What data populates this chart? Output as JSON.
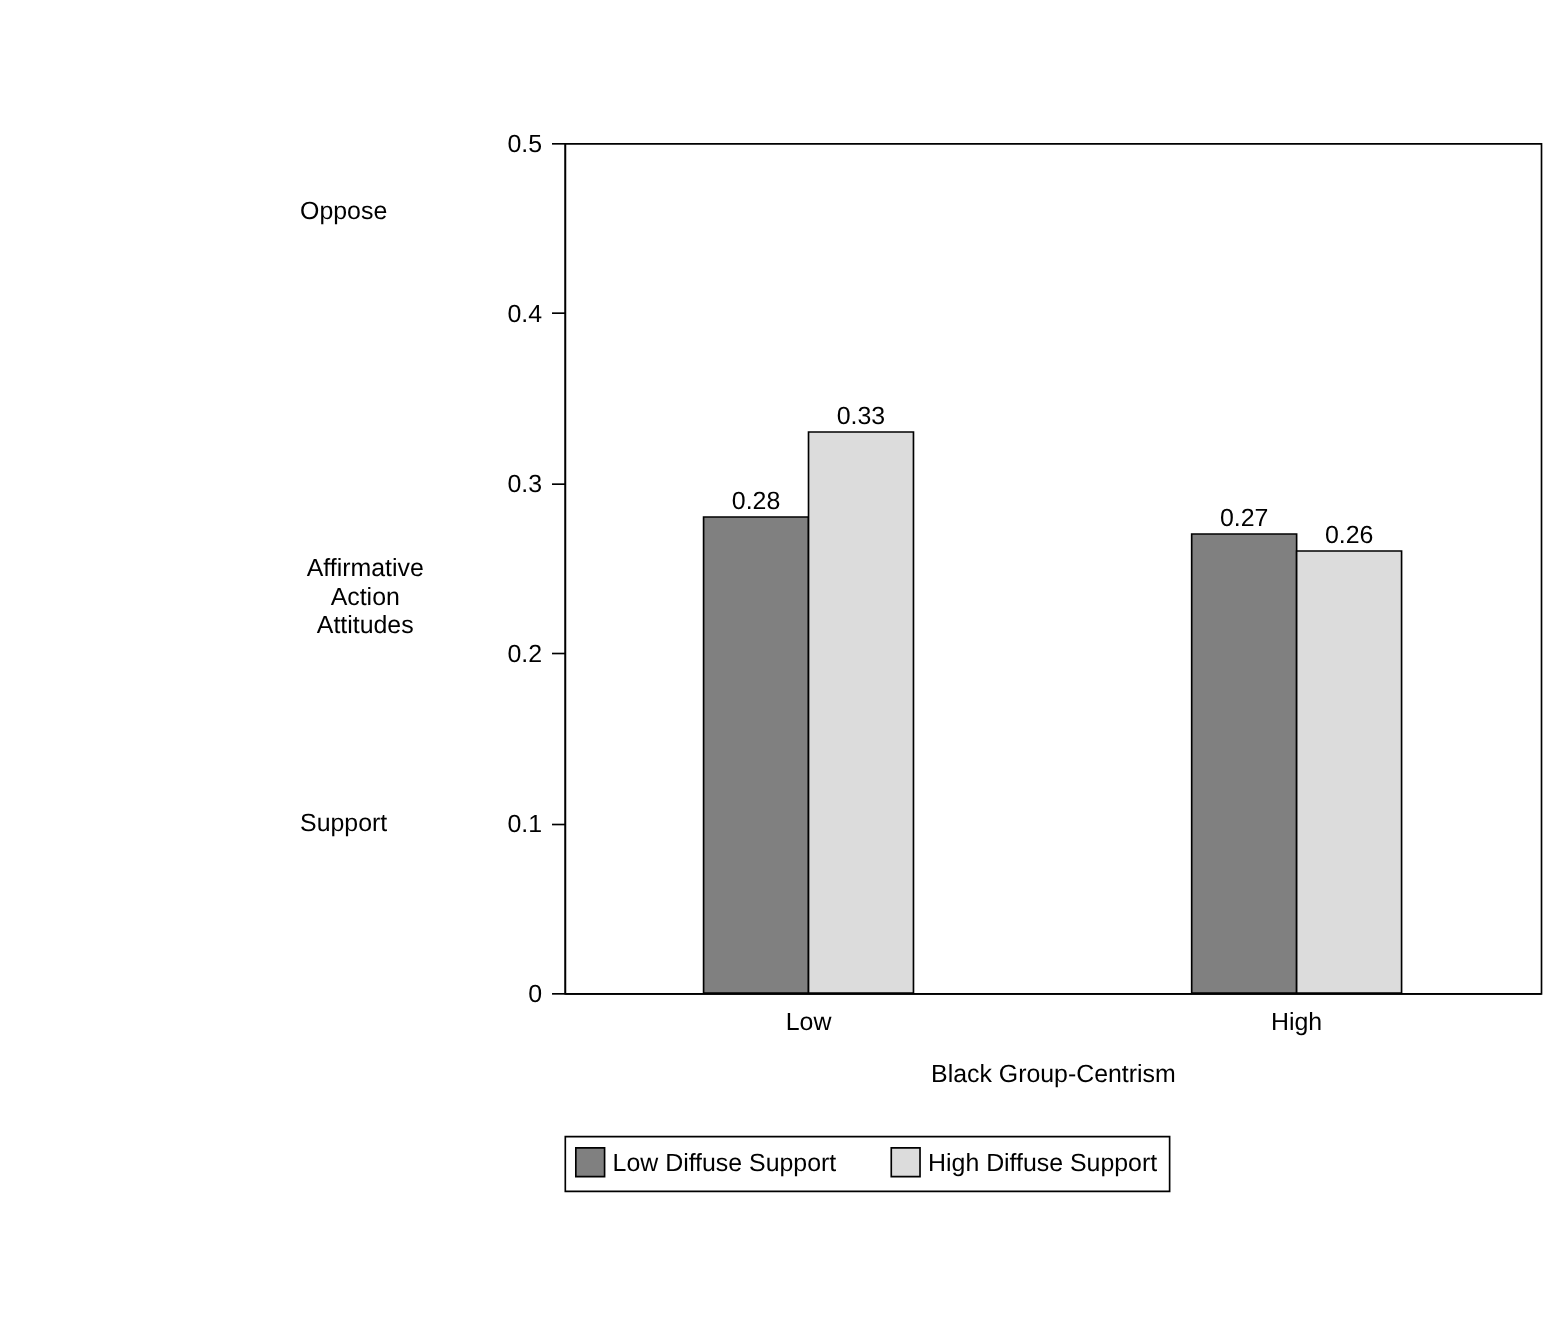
{
  "chart_data": {
    "type": "bar",
    "xlabel": "Black Group-Centrism",
    "ylabel": "Affirmative Action Attitudes",
    "annotations": [
      "Oppose",
      "Support"
    ],
    "categories": [
      "Low",
      "High"
    ],
    "series": [
      {
        "name": "Low Diffuse Support",
        "color": "#808080",
        "values": [
          0.28,
          0.27
        ]
      },
      {
        "name": "High Diffuse Support",
        "color": "#dcdcdc",
        "values": [
          0.33,
          0.26
        ]
      }
    ],
    "ylim": [
      0,
      0.5
    ],
    "yticks": [
      0,
      0.1,
      0.2,
      0.3,
      0.4,
      0.5
    ],
    "data_labels": true,
    "grid": false,
    "legend": "bottom"
  }
}
